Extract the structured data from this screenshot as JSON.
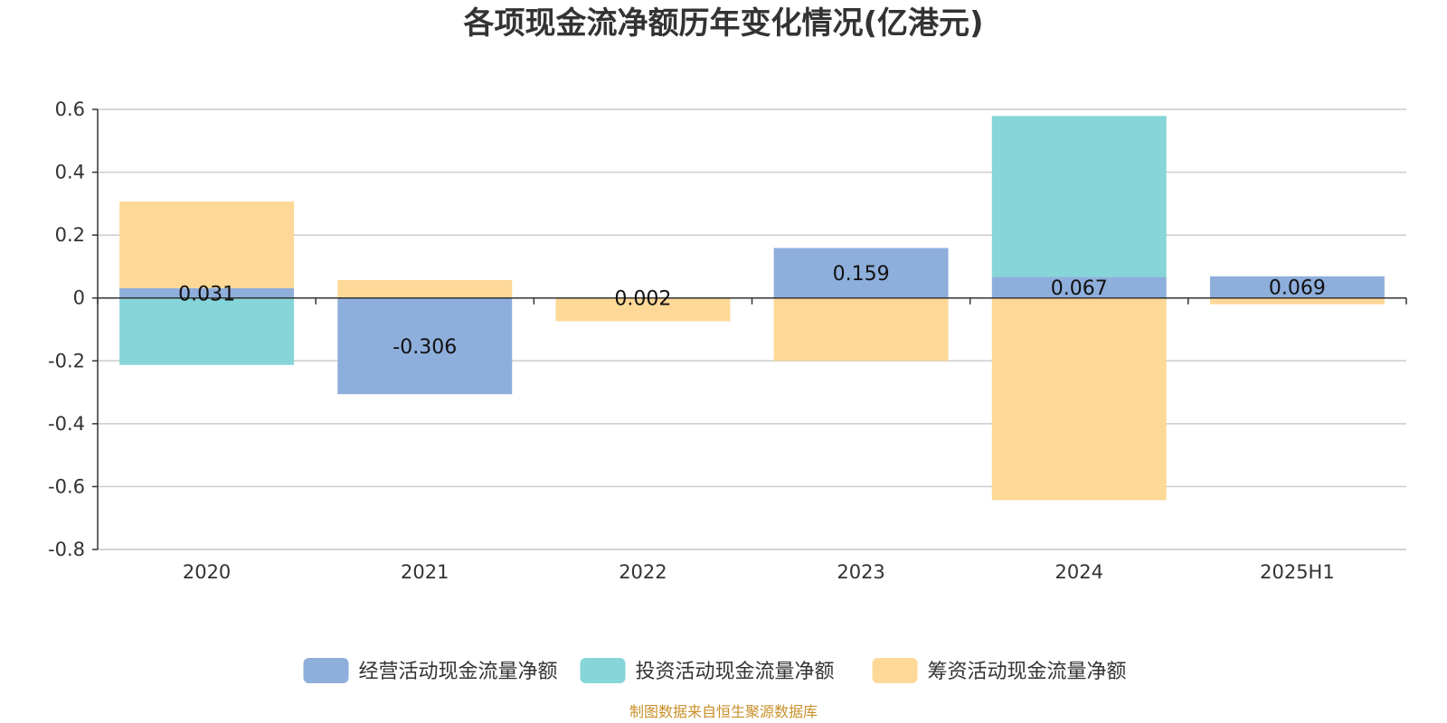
{
  "chart_data": {
    "type": "bar",
    "stacked": true,
    "title": "各项现金流净额历年变化情况(亿港元)",
    "categories": [
      "2020",
      "2021",
      "2022",
      "2023",
      "2024",
      "2025H1"
    ],
    "series": [
      {
        "name": "经营活动现金流量净额",
        "color": "#8eaedb",
        "values": [
          0.031,
          -0.306,
          0.002,
          0.159,
          0.067,
          0.069
        ],
        "labels": [
          "0.031",
          "-0.306",
          "0.002",
          "0.159",
          "0.067",
          "0.069"
        ]
      },
      {
        "name": "投资活动现金流量净额",
        "color": "#86d5d8",
        "values": [
          -0.213,
          0,
          0,
          0,
          0.512,
          0
        ]
      },
      {
        "name": "筹资活动现金流量净额",
        "color": "#fdd897",
        "values": [
          0.276,
          0.057,
          -0.074,
          -0.2,
          -0.643,
          -0.02
        ]
      }
    ],
    "y_ticks": [
      "0.6",
      "0.4",
      "0.2",
      "0",
      "-0.2",
      "-0.4",
      "-0.6",
      "-0.8"
    ],
    "ylim": [
      -0.8,
      0.6
    ],
    "grid": true,
    "legend_position": "bottom"
  },
  "source_text": "制图数据来自恒生聚源数据库",
  "source_color": "#c8902a"
}
